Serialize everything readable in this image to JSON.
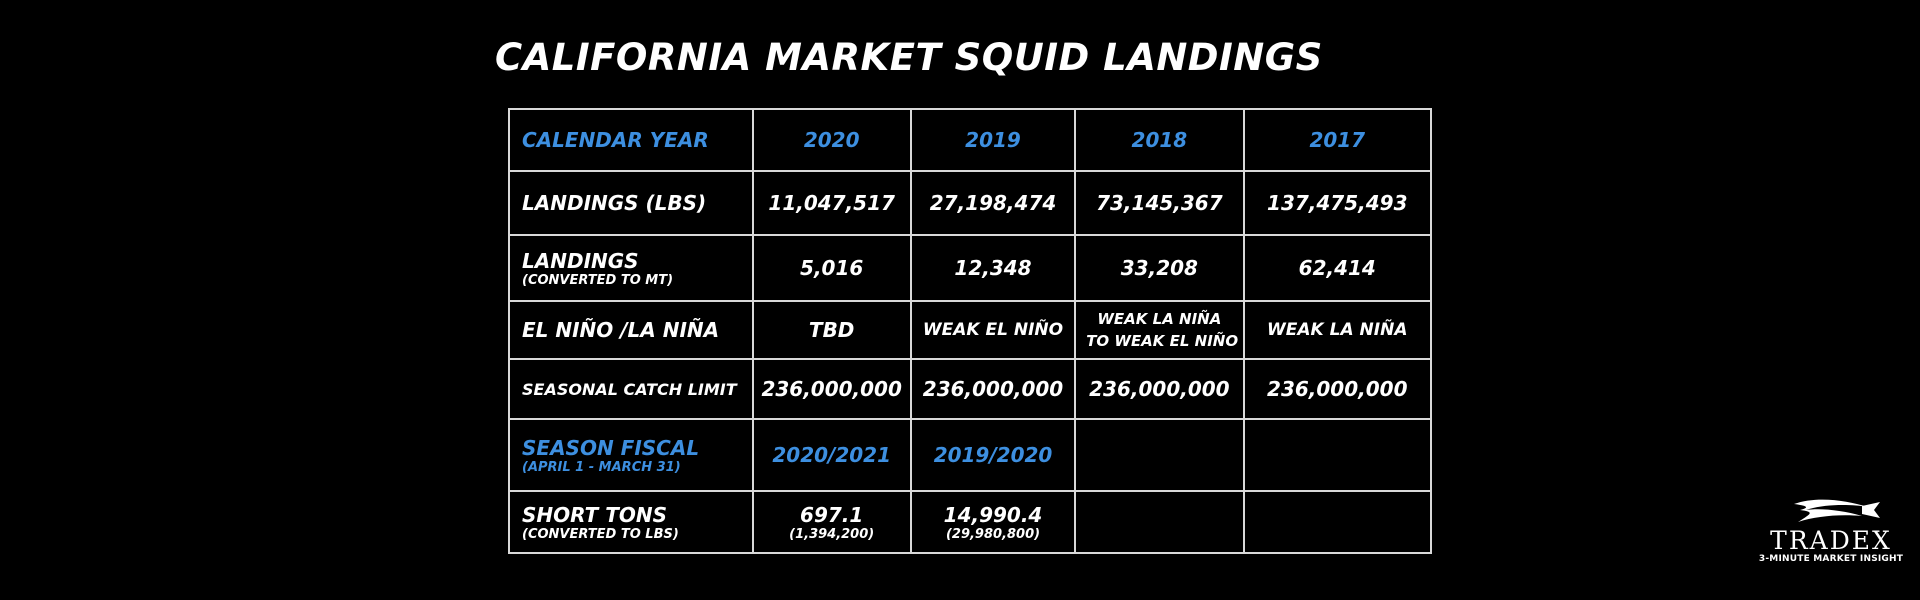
{
  "title": "CALIFORNIA MARKET SQUID LANDINGS",
  "colors": {
    "background": "#000000",
    "text": "#ffffff",
    "accent_blue": "#3d8fe0",
    "grid": "#d9d9d9"
  },
  "header": {
    "label": "CALENDAR YEAR",
    "years": [
      "2020",
      "2019",
      "2018",
      "2017"
    ]
  },
  "rows": {
    "landings_lbs": {
      "label": "LANDINGS (LBS)",
      "values": [
        "11,047,517",
        "27,198,474",
        "73,145,367",
        "137,475,493"
      ]
    },
    "landings_mt": {
      "label": "LANDINGS",
      "sublabel": "(CONVERTED TO MT)",
      "values": [
        "5,016",
        "12,348",
        "33,208",
        "62,414"
      ]
    },
    "enso": {
      "label": "EL NIÑO /LA NIÑA",
      "values": [
        "TBD",
        "WEAK EL NIÑO",
        "WEAK LA NIÑA",
        "WEAK LA NIÑA"
      ],
      "value_2018_line2": "TO WEAK EL NIÑO"
    },
    "catch_limit": {
      "label": "SEASONAL CATCH LIMIT",
      "values": [
        "236,000,000",
        "236,000,000",
        "236,000,000",
        "236,000,000"
      ]
    }
  },
  "season": {
    "label": "SEASON FISCAL",
    "sublabel": "(APRIL 1 - MARCH 31)",
    "values": [
      "2020/2021",
      "2019/2020"
    ]
  },
  "short_tons": {
    "label": "SHORT TONS",
    "sublabel": "(CONVERTED TO LBS)",
    "values": [
      "697.1",
      "14,990.4"
    ],
    "subvalues": [
      "(1,394,200)",
      "(29,980,800)"
    ]
  },
  "logo": {
    "name": "TRADEX",
    "tagline": "3-MINUTE MARKET INSIGHT",
    "icon": "fish-wave-icon"
  }
}
